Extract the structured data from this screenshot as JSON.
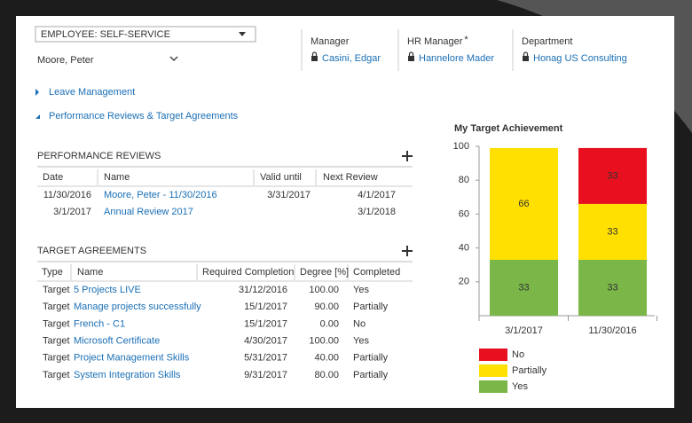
{
  "header": {
    "form_selector": "EMPLOYEE: SELF-SERVICE",
    "name": "Moore, Peter",
    "fields": [
      {
        "label": "Manager",
        "value": "Casini, Edgar"
      },
      {
        "label": "HR Manager",
        "required_marker": "*",
        "value": "Hannelore Mader"
      },
      {
        "label": "Department",
        "value": "Honag US Consulting"
      }
    ]
  },
  "sections": [
    "Leave Management",
    "Performance Reviews & Target Agreements"
  ],
  "performance_reviews": {
    "title": "PERFORMANCE REVIEWS",
    "columns": [
      "Date",
      "Name",
      "Valid until",
      "Next Review"
    ],
    "rows": [
      [
        "11/30/2016",
        "Moore, Peter - 11/30/2016",
        "3/31/2017",
        "4/1/2017"
      ],
      [
        "3/1/2017",
        "Annual Review 2017",
        "",
        "3/1/2018"
      ]
    ]
  },
  "target_agreements": {
    "title": "TARGET AGREEMENTS",
    "columns": [
      "Type",
      "Name",
      "Required Completion",
      "Degree [%]",
      "Completed"
    ],
    "rows": [
      [
        "Target",
        "5 Projects LIVE",
        "31/12/2016",
        "100.00",
        "Yes"
      ],
      [
        "Target",
        "Manage projects successfully",
        "15/1/2017",
        "90.00",
        "Partially"
      ],
      [
        "Target",
        "French - C1",
        "15/1/2017",
        "0.00",
        "No"
      ],
      [
        "Target",
        "Microsoft Certificate",
        "4/30/2017",
        "100.00",
        "Yes"
      ],
      [
        "Target",
        "Project Management Skills",
        "5/31/2017",
        "40.00",
        "Partially"
      ],
      [
        "Target",
        "System Integration Skills",
        "9/31/2017",
        "80.00",
        "Partially"
      ]
    ]
  },
  "chart_data": {
    "type": "stacked_bar",
    "title": "My Target Achievement",
    "categories": [
      "3/1/2017",
      "11/30/2016"
    ],
    "series": [
      {
        "name": "Yes",
        "color": "#7ab648",
        "values": [
          33,
          33
        ]
      },
      {
        "name": "Partially",
        "color": "#ffe000",
        "values": [
          66,
          33
        ]
      },
      {
        "name": "No",
        "color": "#e8101e",
        "values": [
          null,
          33
        ]
      }
    ],
    "ylim": [
      0,
      100
    ],
    "yticks": [
      20,
      40,
      60,
      80,
      100
    ]
  }
}
